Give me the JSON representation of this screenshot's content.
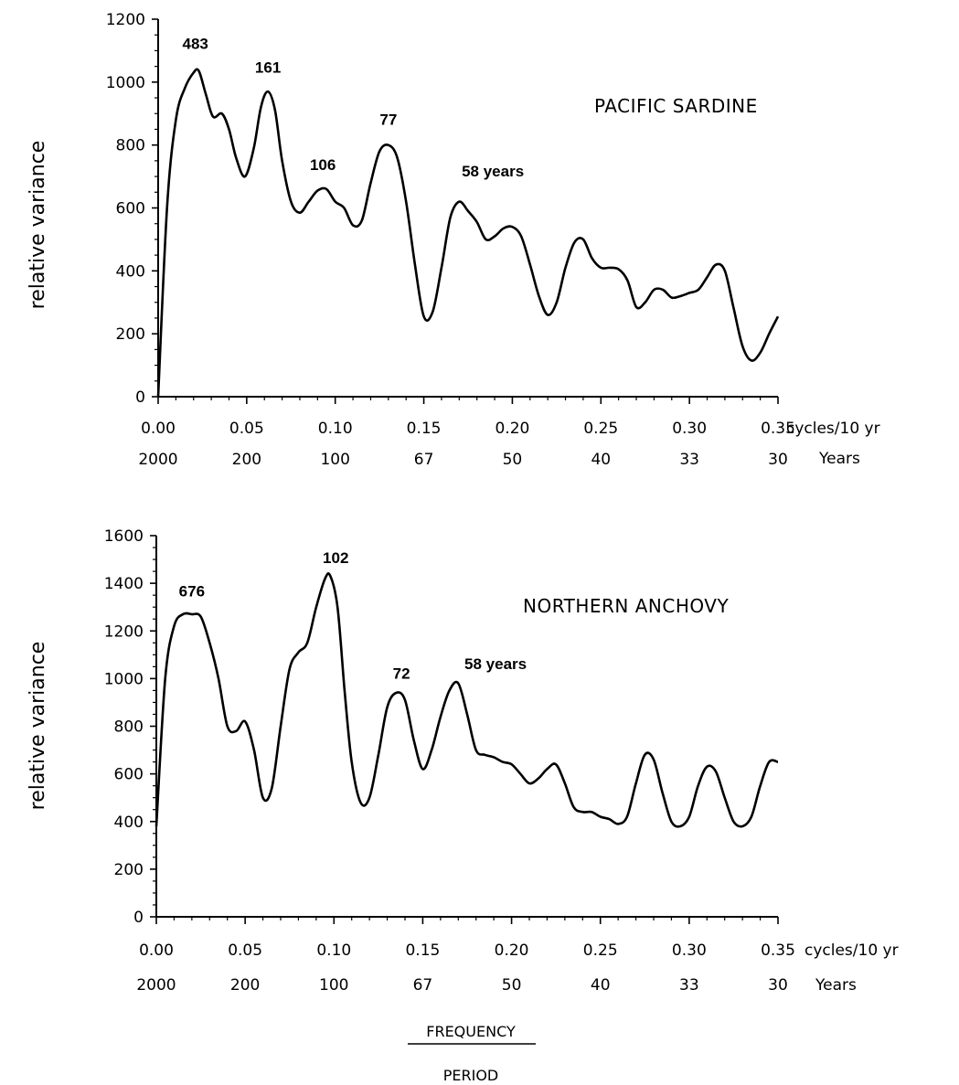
{
  "chart_data": [
    {
      "type": "line",
      "title": "PACIFIC SARDINE",
      "ylabel": "relative variance",
      "x_unit_label": "cycles/10 yr",
      "period_label": "Years",
      "ylim": [
        0,
        1200
      ],
      "yticks": [
        "0",
        "200",
        "400",
        "600",
        "800",
        "1000",
        "1200"
      ],
      "xlim": [
        0,
        0.35
      ],
      "xticks": [
        "0.00",
        "0.05",
        "0.10",
        "0.15",
        "0.20",
        "0.25",
        "0.30",
        "0.35"
      ],
      "period_ticks": [
        "2000",
        "200",
        "100",
        "67",
        "50",
        "40",
        "33",
        "30"
      ],
      "annotations": [
        {
          "text": "483",
          "x": 0.021,
          "y": 1105
        },
        {
          "text": "161",
          "x": 0.062,
          "y": 1030
        },
        {
          "text": "106",
          "x": 0.093,
          "y": 720
        },
        {
          "text": "77",
          "x": 0.13,
          "y": 865
        },
        {
          "text": "58 years",
          "x": 0.189,
          "y": 700
        }
      ],
      "series": [
        {
          "x": [
            0.0,
            0.005,
            0.01,
            0.015,
            0.02,
            0.023,
            0.027,
            0.031,
            0.036,
            0.04,
            0.044,
            0.049,
            0.054,
            0.058,
            0.062,
            0.066,
            0.07,
            0.075,
            0.08,
            0.085,
            0.09,
            0.095,
            0.1,
            0.105,
            0.11,
            0.115,
            0.12,
            0.125,
            0.13,
            0.135,
            0.14,
            0.145,
            0.15,
            0.155,
            0.16,
            0.165,
            0.17,
            0.175,
            0.18,
            0.185,
            0.19,
            0.195,
            0.2,
            0.205,
            0.21,
            0.215,
            0.22,
            0.225,
            0.23,
            0.235,
            0.24,
            0.245,
            0.25,
            0.255,
            0.26,
            0.265,
            0.27,
            0.275,
            0.28,
            0.285,
            0.29,
            0.295,
            0.3,
            0.305,
            0.31,
            0.315,
            0.32,
            0.325,
            0.33,
            0.335,
            0.34,
            0.345,
            0.35
          ],
          "values": [
            0,
            600,
            880,
            980,
            1030,
            1035,
            960,
            890,
            900,
            850,
            760,
            700,
            790,
            920,
            970,
            910,
            750,
            620,
            585,
            620,
            655,
            660,
            620,
            600,
            545,
            560,
            680,
            780,
            800,
            760,
            620,
            420,
            255,
            270,
            410,
            570,
            620,
            590,
            555,
            500,
            510,
            535,
            540,
            510,
            420,
            320,
            260,
            300,
            410,
            490,
            500,
            440,
            410,
            410,
            405,
            370,
            285,
            300,
            340,
            340,
            315,
            320,
            330,
            340,
            380,
            420,
            400,
            280,
            160,
            115,
            140,
            200,
            255
          ]
        }
      ]
    },
    {
      "type": "line",
      "title": "NORTHERN ANCHOVY",
      "ylabel": "relative variance",
      "x_unit_label": "cycles/10 yr",
      "period_label": "Years",
      "ylim": [
        0,
        1600
      ],
      "yticks": [
        "0",
        "200",
        "400",
        "600",
        "800",
        "1000",
        "1200",
        "1400",
        "1600"
      ],
      "xlim": [
        0,
        0.35
      ],
      "xticks": [
        "0.00",
        "0.05",
        "0.10",
        "0.15",
        "0.20",
        "0.25",
        "0.30",
        "0.35"
      ],
      "period_ticks": [
        "2000",
        "200",
        "100",
        "67",
        "50",
        "40",
        "33",
        "30"
      ],
      "annotations": [
        {
          "text": "676",
          "x": 0.02,
          "y": 1345
        },
        {
          "text": "102",
          "x": 0.101,
          "y": 1485
        },
        {
          "text": "72",
          "x": 0.138,
          "y": 1000
        },
        {
          "text": "58 years",
          "x": 0.191,
          "y": 1040
        }
      ],
      "series": [
        {
          "x": [
            0.0,
            0.005,
            0.01,
            0.015,
            0.02,
            0.025,
            0.03,
            0.035,
            0.04,
            0.045,
            0.05,
            0.055,
            0.06,
            0.065,
            0.07,
            0.075,
            0.08,
            0.085,
            0.09,
            0.095,
            0.098,
            0.102,
            0.106,
            0.11,
            0.115,
            0.12,
            0.125,
            0.13,
            0.135,
            0.14,
            0.145,
            0.15,
            0.155,
            0.16,
            0.165,
            0.17,
            0.175,
            0.18,
            0.185,
            0.19,
            0.195,
            0.2,
            0.205,
            0.21,
            0.215,
            0.22,
            0.225,
            0.23,
            0.235,
            0.24,
            0.245,
            0.25,
            0.255,
            0.26,
            0.265,
            0.27,
            0.275,
            0.28,
            0.285,
            0.29,
            0.295,
            0.3,
            0.305,
            0.31,
            0.315,
            0.32,
            0.325,
            0.33,
            0.335,
            0.34,
            0.345,
            0.35
          ],
          "values": [
            380,
            1000,
            1220,
            1270,
            1270,
            1260,
            1150,
            1000,
            800,
            780,
            820,
            700,
            500,
            540,
            800,
            1040,
            1110,
            1150,
            1300,
            1420,
            1430,
            1300,
            950,
            650,
            480,
            500,
            680,
            880,
            940,
            910,
            740,
            620,
            700,
            840,
            950,
            980,
            850,
            700,
            680,
            670,
            650,
            640,
            600,
            560,
            580,
            620,
            640,
            560,
            460,
            440,
            440,
            420,
            410,
            390,
            420,
            560,
            680,
            660,
            520,
            400,
            380,
            420,
            550,
            630,
            610,
            500,
            400,
            380,
            420,
            550,
            650,
            650
          ]
        }
      ]
    }
  ],
  "footer": {
    "frequency_label": "FREQUENCY",
    "period_label": "PERIOD"
  }
}
